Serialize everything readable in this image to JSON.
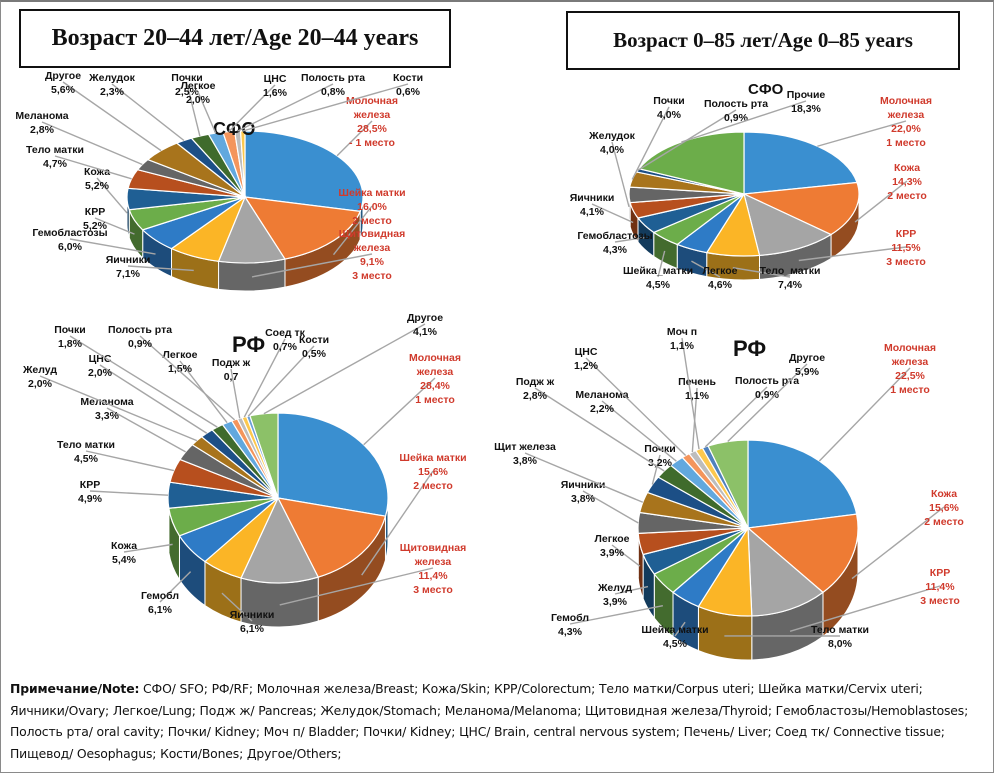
{
  "titles": {
    "left": "Возраст 20–44 лет/Age 20–44 years",
    "right": "Возраст 0–85 лет/Age 0–85 years"
  },
  "note": {
    "label": "Примечание/Note:",
    "text": " СФО/ SFO; РФ/RF; Молочная железа/Breast; Кожа/Skin; КРР/Colorectum; Тело матки/Corpus uteri; Шейка матки/Cervix uteri; Яичники/Ovary;   Легкое/Lung;  Подж ж/ Pancreas; Желудок/Stomach; Меланома/Melanoma; Щитовидная железа/Thyroid; Гемобластозы/Hemoblastoses; Полость рта/ oral cavity; Почки/ Kidney; Моч п/ Bladder; Почки/ Kidney; ЦНС/ Brain, central nervous system; Печень/ Liver; Соед тк/ Connective tissue;  Пищевод/ Oesophagus; Кости/Bones; Другое/Others;"
  },
  "colors": {
    "highlight_label": "#d03a2c",
    "normal_label": "#111111"
  },
  "chart_data": [
    {
      "type": "pie",
      "title": "СФО",
      "group": "Возраст 20–44 лет/Age 20–44 years",
      "slices": [
        {
          "label": "Молочная железа",
          "value": 28.5,
          "text": "28,5%",
          "rank": "- 1 место",
          "color": "#3a8fd0",
          "highlight": true
        },
        {
          "label": "Шейка матки",
          "value": 16.0,
          "text": "16,0%",
          "rank": "2 место",
          "color": "#ee7b34",
          "highlight": true
        },
        {
          "label": "Щитовидная железа",
          "value": 9.1,
          "text": "9,1%",
          "rank": "3 место",
          "color": "#a5a5a5",
          "highlight": true
        },
        {
          "label": "Яичники",
          "value": 7.1,
          "text": "7,1%",
          "color": "#fbb526"
        },
        {
          "label": "Гемобластозы",
          "value": 6.0,
          "text": "6,0%",
          "color": "#2e7bc6"
        },
        {
          "label": "КРР",
          "value": 5.2,
          "text": "5,2%",
          "color": "#6cad4a"
        },
        {
          "label": "Кожа",
          "value": 5.2,
          "text": "5,2%",
          "color": "#1f5f94"
        },
        {
          "label": "Тело матки",
          "value": 4.7,
          "text": "4,7%",
          "color": "#b74f1e"
        },
        {
          "label": "Меланома",
          "value": 2.8,
          "text": "2,8%",
          "color": "#656565"
        },
        {
          "label": "Другое",
          "value": 5.6,
          "text": "5,6%",
          "color": "#a8741c"
        },
        {
          "label": "Желудок",
          "value": 2.3,
          "text": "2,3%",
          "color": "#1c4f86"
        },
        {
          "label": "Почки",
          "value": 2.5,
          "text": "2,5%",
          "color": "#3f6b2c"
        },
        {
          "label": "Легкое",
          "value": 2.0,
          "text": "2,0%",
          "color": "#62a8de"
        },
        {
          "label": "ЦНС",
          "value": 1.6,
          "text": "1,6%",
          "color": "#f4955c"
        },
        {
          "label": "Полость рта",
          "value": 0.8,
          "text": "0,8%",
          "color": "#bdbdbd"
        },
        {
          "label": "Кости",
          "value": 0.6,
          "text": "0,6%",
          "color": "#fcc84e"
        }
      ]
    },
    {
      "type": "pie",
      "title": "СФО",
      "group": "Возраст 0–85 лет/Age 0–85 years",
      "slices": [
        {
          "label": "Молочная железа",
          "value": 22.0,
          "text": "22,0%",
          "rank": "1 место",
          "color": "#3a8fd0",
          "highlight": true
        },
        {
          "label": "Кожа",
          "value": 14.3,
          "text": "14,3%",
          "rank": "2 место",
          "color": "#ee7b34",
          "highlight": true
        },
        {
          "label": "КРР",
          "value": 11.5,
          "text": "11,5%",
          "rank": "3 место",
          "color": "#a5a5a5",
          "highlight": true
        },
        {
          "label": "Тело_матки",
          "value": 7.4,
          "text": "7,4%",
          "color": "#fbb526"
        },
        {
          "label": "Легкое",
          "value": 4.6,
          "text": "4,6%",
          "color": "#2e7bc6"
        },
        {
          "label": "Шейка_матки",
          "value": 4.5,
          "text": "4,5%",
          "color": "#6cad4a"
        },
        {
          "label": "Гемобластозы",
          "value": 4.3,
          "text": "4,3%",
          "color": "#1f5f94"
        },
        {
          "label": "Яичники",
          "value": 4.1,
          "text": "4,1%",
          "color": "#b74f1e"
        },
        {
          "label": "Желудок",
          "value": 4.0,
          "text": "4,0%",
          "color": "#656565"
        },
        {
          "label": "Почки",
          "value": 4.0,
          "text": "4,0%",
          "color": "#a8741c"
        },
        {
          "label": "Полость рта",
          "value": 0.9,
          "text": "0,9%",
          "color": "#1c4f86"
        },
        {
          "label": "Прочие",
          "value": 18.3,
          "text": "18,3%",
          "color": "#6cad4a"
        }
      ]
    },
    {
      "type": "pie",
      "title": "РФ",
      "group": "Возраст 20–44 лет/Age 20–44 years",
      "slices": [
        {
          "label": "Молочная железа",
          "value": 28.4,
          "text": "28,4%",
          "rank": "1 место",
          "color": "#3a8fd0",
          "highlight": true
        },
        {
          "label": "Шейка матки",
          "value": 15.6,
          "text": "15,6%",
          "rank": "2 место",
          "color": "#ee7b34",
          "highlight": true
        },
        {
          "label": "Щитовидная железа",
          "value": 11.4,
          "text": "11,4%",
          "rank": "3 место",
          "color": "#a5a5a5",
          "highlight": true
        },
        {
          "label": "Яичники",
          "value": 6.1,
          "text": "6,1%",
          "color": "#fbb526"
        },
        {
          "label": "Гемобл",
          "value": 6.1,
          "text": "6,1%",
          "color": "#2e7bc6"
        },
        {
          "label": "Кожа",
          "value": 5.4,
          "text": "5,4%",
          "color": "#6cad4a"
        },
        {
          "label": "КРР",
          "value": 4.9,
          "text": "4,9%",
          "color": "#1f5f94"
        },
        {
          "label": "Тело матки",
          "value": 4.5,
          "text": "4,5%",
          "color": "#b74f1e"
        },
        {
          "label": "Меланома",
          "value": 3.3,
          "text": "3,3%",
          "color": "#656565"
        },
        {
          "label": "Желуд",
          "value": 2.0,
          "text": "2,0%",
          "color": "#a8741c"
        },
        {
          "label": "ЦНС",
          "value": 2.0,
          "text": "2,0%",
          "color": "#1c4f86"
        },
        {
          "label": "Почки",
          "value": 1.8,
          "text": "1,8%",
          "color": "#3f6b2c"
        },
        {
          "label": "Легкое",
          "value": 1.5,
          "text": "1,5%",
          "color": "#62a8de"
        },
        {
          "label": "Полость рта",
          "value": 0.9,
          "text": "0,9%",
          "color": "#f4955c"
        },
        {
          "label": "Подж ж",
          "value": 0.7,
          "text": "0,7",
          "color": "#bdbdbd"
        },
        {
          "label": "Соед тк",
          "value": 0.7,
          "text": "0,7%",
          "color": "#fcc84e"
        },
        {
          "label": "Кости",
          "value": 0.5,
          "text": "0,5%",
          "color": "#6a9fd8"
        },
        {
          "label": "Другое",
          "value": 4.1,
          "text": "4,1%",
          "color": "#8cc168"
        }
      ]
    },
    {
      "type": "pie",
      "title": "РФ",
      "group": "Возраст 0–85 лет/Age 0–85 years",
      "slices": [
        {
          "label": "Молочная железа",
          "value": 22.5,
          "text": "22,5%",
          "rank": "1 место",
          "color": "#3a8fd0",
          "highlight": true
        },
        {
          "label": "Кожа",
          "value": 15.6,
          "text": "15,6%",
          "rank": "2 место",
          "color": "#ee7b34",
          "highlight": true
        },
        {
          "label": "КРР",
          "value": 11.4,
          "text": "11,4%",
          "rank": "3 место",
          "color": "#a5a5a5",
          "highlight": true
        },
        {
          "label": "Тело матки",
          "value": 8.0,
          "text": "8,0%",
          "color": "#fbb526"
        },
        {
          "label": "Шейка матки",
          "value": 4.5,
          "text": "4,5%",
          "color": "#2e7bc6"
        },
        {
          "label": "Гемобл",
          "value": 4.3,
          "text": "4,3%",
          "color": "#6cad4a"
        },
        {
          "label": "Желуд",
          "value": 3.9,
          "text": "3,9%",
          "color": "#1f5f94"
        },
        {
          "label": "Легкое",
          "value": 3.9,
          "text": "3,9%",
          "color": "#b74f1e"
        },
        {
          "label": "Яичники",
          "value": 3.8,
          "text": "3,8%",
          "color": "#656565"
        },
        {
          "label": "Щит железа",
          "value": 3.8,
          "text": "3,8%",
          "color": "#a8741c"
        },
        {
          "label": "Почки",
          "value": 3.2,
          "text": "3,2%",
          "color": "#1c4f86"
        },
        {
          "label": "Подж ж",
          "value": 2.8,
          "text": "2,8%",
          "color": "#3f6b2c"
        },
        {
          "label": "Меланома",
          "value": 2.2,
          "text": "2,2%",
          "color": "#62a8de"
        },
        {
          "label": "ЦНС",
          "value": 1.2,
          "text": "1,2%",
          "color": "#f4955c"
        },
        {
          "label": "Печень",
          "value": 1.1,
          "text": "1,1%",
          "color": "#bdbdbd"
        },
        {
          "label": "Моч п",
          "value": 1.1,
          "text": "1,1%",
          "color": "#fcc84e"
        },
        {
          "label": "Полость рта",
          "value": 0.9,
          "text": "0,9%",
          "color": "#4f81bd"
        },
        {
          "label": "Другое",
          "value": 5.9,
          "text": "5,9%",
          "color": "#8cc168"
        }
      ]
    }
  ]
}
